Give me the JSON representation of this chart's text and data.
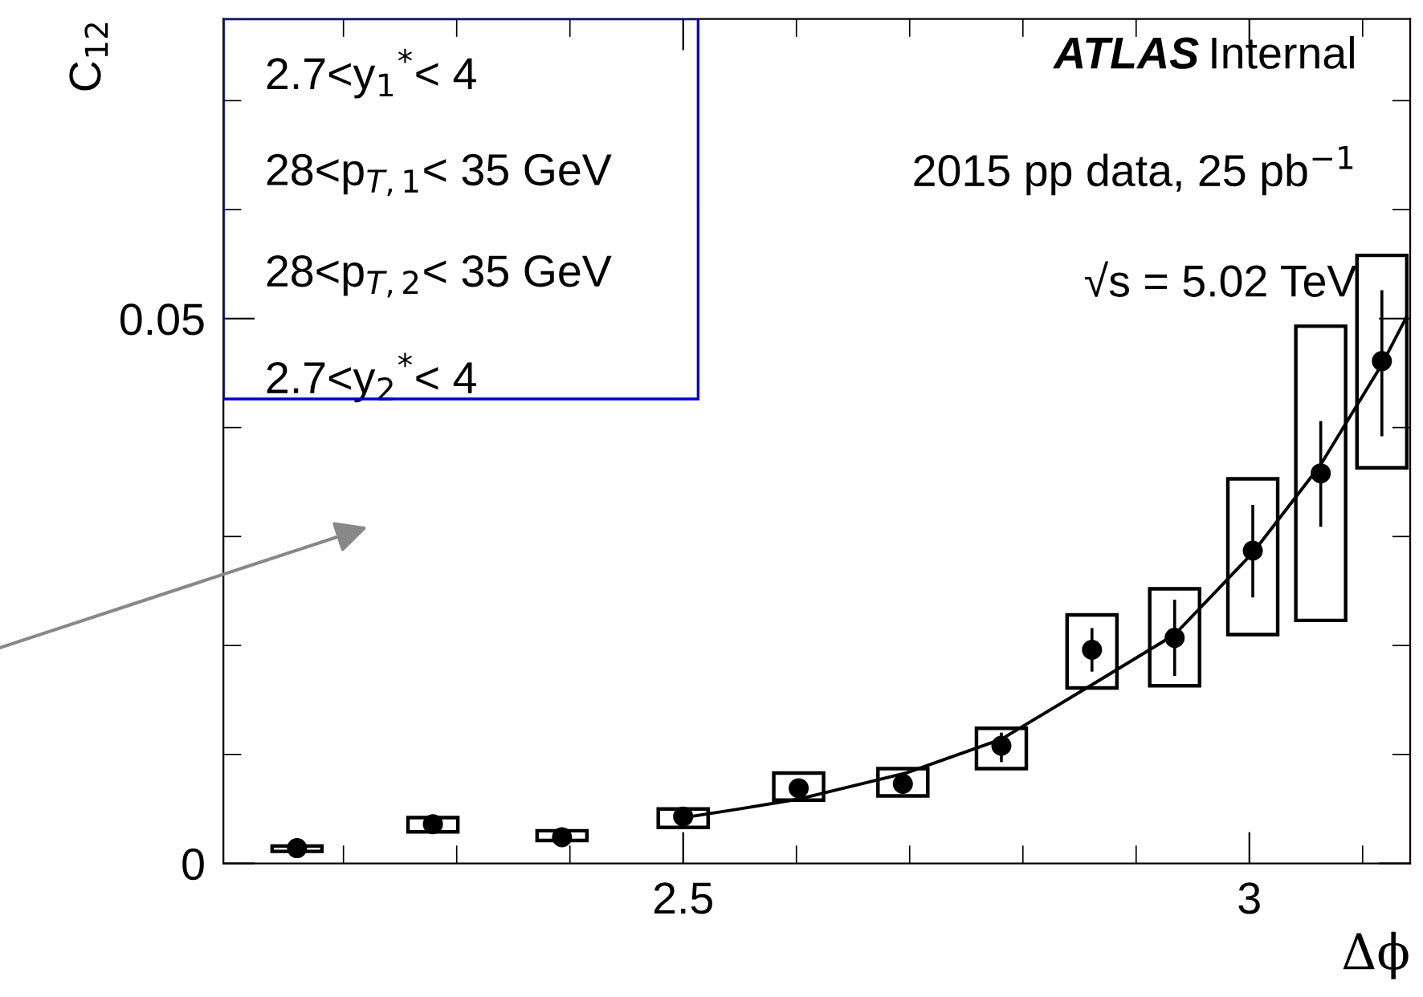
{
  "chart_data": {
    "type": "scatter",
    "xlabel": "Δϕ",
    "ylabel": "C$_{12}$",
    "xlim": [
      2.094,
      3.142
    ],
    "ylim": [
      0,
      0.0775
    ],
    "xticks": [
      {
        "value": 2.2,
        "label": null
      },
      {
        "value": 2.3,
        "label": null
      },
      {
        "value": 2.4,
        "label": null
      },
      2.5,
      {
        "value": 2.6,
        "label": null
      },
      {
        "value": 2.7,
        "label": null
      },
      {
        "value": 2.8,
        "label": null
      },
      {
        "value": 2.9,
        "label": null
      },
      3,
      {
        "value": 3.1,
        "label": null
      }
    ],
    "yticks": [
      0,
      {
        "value": 0.01,
        "label": null
      },
      {
        "value": 0.02,
        "label": null
      },
      {
        "value": 0.03,
        "label": null
      },
      {
        "value": 0.04,
        "label": null
      },
      0.05,
      {
        "value": 0.06,
        "label": null
      },
      {
        "value": 0.07,
        "label": null
      }
    ],
    "series": [
      {
        "type": "bar",
        "color": "#000000",
        "x": [
          2.159,
          2.279,
          2.393,
          2.5,
          2.602,
          2.694,
          2.781,
          2.861,
          2.934,
          3.003,
          3.063,
          3.117
        ],
        "base": [
          0.0011,
          0.0029,
          0.0021,
          0.0033,
          0.0058,
          0.0062,
          0.0087,
          0.0161,
          0.0163,
          0.021,
          0.0223,
          0.0363
        ],
        "values": [
          0.0005,
          0.0013,
          0.0009,
          0.0017,
          0.0025,
          0.0025,
          0.0037,
          0.0067,
          0.0089,
          0.0143,
          0.027,
          0.0195
        ]
      },
      {
        "marker": "circle",
        "color": "#000000",
        "x": [
          2.159,
          2.279,
          2.393,
          2.5,
          2.602,
          2.694,
          2.781,
          2.861,
          2.934,
          3.003,
          3.063,
          3.117
        ],
        "values": [
          0.0014,
          0.0036,
          0.0024,
          0.0043,
          0.0069,
          0.0073,
          0.0108,
          0.0196,
          0.0207,
          0.0287,
          0.0358,
          0.0461
        ],
        "errors": [
          null,
          null,
          null,
          [
            0.0035,
            0.005
          ],
          [
            0.006,
            0.0077
          ],
          [
            0.0066,
            0.008
          ],
          [
            0.0093,
            0.012
          ],
          [
            0.0176,
            0.0216
          ],
          [
            0.0172,
            0.0242
          ],
          [
            0.0244,
            0.0329
          ],
          [
            0.0309,
            0.0406
          ],
          [
            0.0392,
            0.0526
          ]
        ]
      },
      {
        "type": "line",
        "color": "#000000",
        "x": [
          2.5,
          2.55,
          2.602,
          2.697,
          2.781,
          2.861,
          2.934,
          3.003,
          3.063,
          3.117,
          3.139
        ],
        "values": [
          0.0042,
          0.005,
          0.0059,
          0.0083,
          0.0114,
          0.0164,
          0.021,
          0.0285,
          0.0366,
          0.0458,
          0.0502
        ]
      }
    ],
    "annotations": [
      "ATLAS",
      "Internal",
      "2015 pp data, 25 pb$^{−1}$",
      "√s = 5.02 TeV",
      "2.7<y$_{1}$$^{*}$< 4",
      "28<p$_{T,1}$< 35 GeV",
      "28<p$_{T,2}$< 35 GeV",
      "2.7<y$_{2}$$^{*}$< 4"
    ]
  }
}
